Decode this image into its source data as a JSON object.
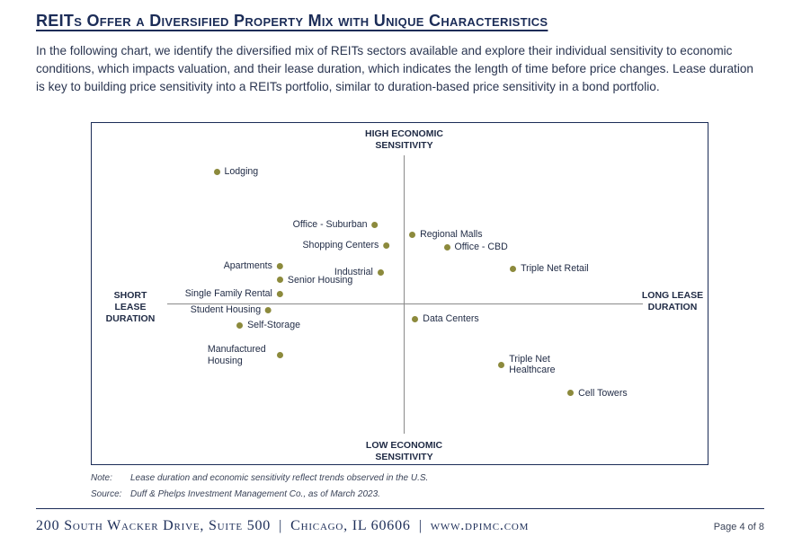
{
  "page": {
    "title": "REITs Offer a Diversified Property Mix with Unique Characteristics",
    "intro": "In the following chart, we identify the diversified mix of REITs sectors available and explore their individual sensitivity to economic conditions, which impacts valuation, and their lease duration, which indicates the length of time before price changes. Lease duration is key to building price sensitivity into a REITs portfolio, similar to duration-based price sensitivity in a bond portfolio."
  },
  "chart_data": {
    "type": "scatter",
    "title": "",
    "axis_labels": {
      "top": "HIGH ECONOMIC SENSITIVITY",
      "bottom": "LOW ECONOMIC SENSITIVITY",
      "left": "SHORT LEASE DURATION",
      "right": "LONG LEASE DURATION"
    },
    "x_meaning": "lease duration (short to long)",
    "y_meaning": "economic sensitivity (low to high)",
    "xlim": [
      -1,
      1
    ],
    "ylim": [
      -1,
      1
    ],
    "grid": false,
    "marker_color": "#8c8a3c",
    "points": [
      {
        "label": "Lodging",
        "x": -0.65,
        "y": 0.84
      },
      {
        "label": "Office - Suburban",
        "x": -0.1,
        "y": 0.5
      },
      {
        "label": "Shopping Centers",
        "x": -0.06,
        "y": 0.37
      },
      {
        "label": "Regional Malls",
        "x": 0.03,
        "y": 0.44
      },
      {
        "label": "Office - CBD",
        "x": 0.15,
        "y": 0.36
      },
      {
        "label": "Triple Net Retail",
        "x": 0.38,
        "y": 0.22
      },
      {
        "label": "Apartments",
        "x": -0.43,
        "y": 0.24
      },
      {
        "label": "Industrial",
        "x": -0.08,
        "y": 0.2
      },
      {
        "label": "Senior Housing",
        "x": -0.43,
        "y": 0.15
      },
      {
        "label": "Single Family Rental",
        "x": -0.43,
        "y": 0.06
      },
      {
        "label": "Student Housing",
        "x": -0.47,
        "y": -0.04
      },
      {
        "label": "Self-Storage",
        "x": -0.57,
        "y": -0.14
      },
      {
        "label": "Data Centers",
        "x": 0.04,
        "y": -0.1
      },
      {
        "label": "Manufactured Housing",
        "x": -0.43,
        "y": -0.33
      },
      {
        "label": "Triple Net Healthcare",
        "x": 0.34,
        "y": -0.39
      },
      {
        "label": "Cell Towers",
        "x": 0.58,
        "y": -0.57
      }
    ]
  },
  "notes": {
    "note_key": "Note:",
    "note_text": "Lease duration and economic sensitivity reflect trends observed in the U.S.",
    "source_key": "Source:",
    "source_text": "Duff & Phelps Investment Management Co., as of March 2023."
  },
  "footer": {
    "address": "200 South Wacker Drive, Suite 500",
    "city": "Chicago, IL 60606",
    "website": "www.dpimc.com",
    "separator": "|",
    "page": "Page 4 of 8"
  }
}
